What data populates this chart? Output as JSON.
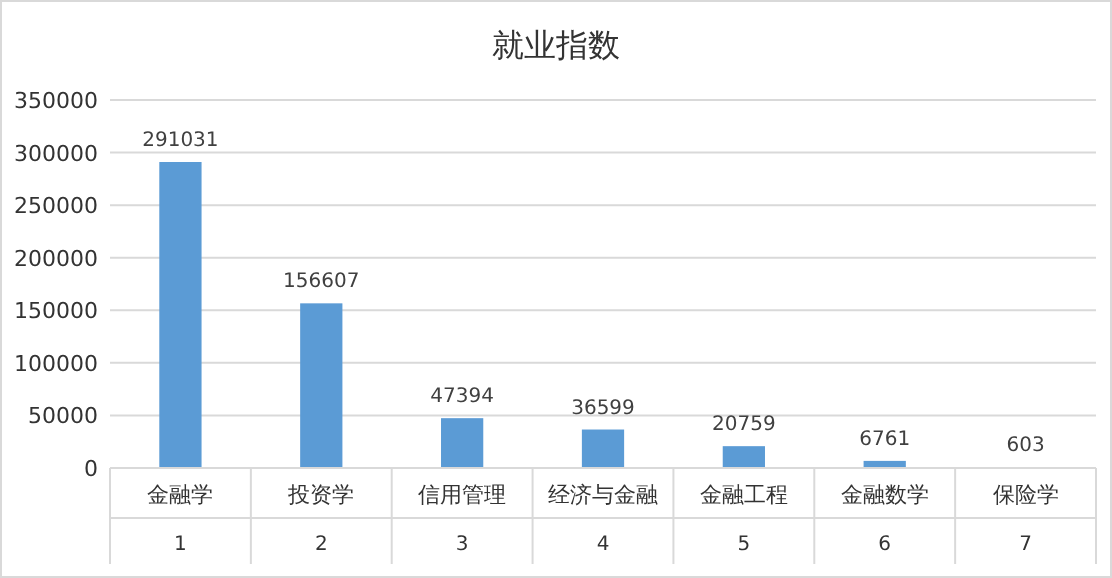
{
  "chart_data": {
    "type": "bar",
    "title": "就业指数",
    "categories": [
      "金融学\n1",
      "投资学\n2",
      "信用管理\n3",
      "经济与金融\n4",
      "金融工程\n5",
      "金融数学\n6",
      "保险学\n7"
    ],
    "values": [
      291031,
      156607,
      47394,
      36599,
      20759,
      6761,
      603
    ],
    "color": "#5b9bd5",
    "ylim": [
      0,
      350000
    ],
    "yticks": [
      0,
      50000,
      100000,
      150000,
      200000,
      250000,
      300000,
      350000
    ],
    "grid": "y",
    "data_labels": true
  }
}
